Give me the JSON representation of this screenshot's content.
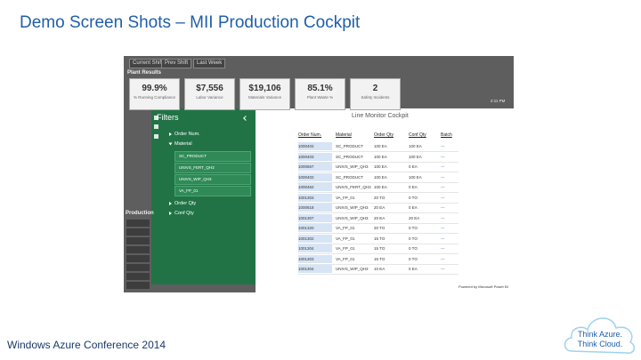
{
  "header": {
    "title": "Demo Screen Shots – MII Production Cockpit"
  },
  "footer": {
    "text": "Windows Azure Conference 2014"
  },
  "logo": {
    "lines": [
      "Think Azure.",
      "Think Cloud."
    ]
  },
  "screenshot": {
    "tabs": [
      "Current Shift",
      "Prev Shift",
      "Last Week"
    ],
    "plant_results_label": "Plant Results",
    "clock": "2:11 PM",
    "kpis": [
      {
        "value": "99.9%",
        "label": "% Running Compliance"
      },
      {
        "value": "$7,556",
        "label": "Labor Variance"
      },
      {
        "value": "$19,106",
        "label": "Materials Variance"
      },
      {
        "value": "85.1%",
        "label": "Plant Waste %"
      },
      {
        "value": "2",
        "label": "Safety Incidents"
      }
    ],
    "production_label": "Production",
    "filters": {
      "title": "Filters",
      "items": [
        {
          "label": "Order Num.",
          "options": []
        },
        {
          "label": "Material",
          "options": [
            "SC_PRODUCT",
            "UNIVS_FERT_QH3",
            "UNIVS_WIP_QH3",
            "VA_FP_01"
          ]
        },
        {
          "label": "Order Qty",
          "options": []
        },
        {
          "label": "Conf Qty",
          "options": []
        }
      ]
    },
    "cockpit": {
      "title": "Line Monitor Cockpit",
      "columns": [
        "Order Num.",
        "Material",
        "Order Qty",
        "Conf Qty",
        "Batch"
      ],
      "rows": [
        [
          "1000402",
          "SC_PRODUCT",
          "100 EA",
          "100 EA",
          "---"
        ],
        [
          "1000403",
          "SC_PRODUCT",
          "100 EA",
          "100 EA",
          "---"
        ],
        [
          "1000667",
          "UNIVS_WIP_QH3",
          "100 EA",
          "0 EA",
          "---"
        ],
        [
          "1000402",
          "SC_PRODUCT",
          "100 EA",
          "100 EA",
          "---"
        ],
        [
          "1000462",
          "UNIVS_FERT_QH3",
          "100 EA",
          "0 EA",
          "---"
        ],
        [
          "1001303",
          "VA_FP_01",
          "20 TO",
          "0 TO",
          "---"
        ],
        [
          "1000618",
          "UNIVS_WIP_QH3",
          "20 EA",
          "0 EA",
          "---"
        ],
        [
          "1001307",
          "UNIVS_WIP_QH3",
          "20 EA",
          "20 EA",
          "---"
        ],
        [
          "1001320",
          "VA_FP_01",
          "20 TO",
          "0 TO",
          "---"
        ],
        [
          "1001302",
          "VA_FP_01",
          "15 TO",
          "0 TO",
          "---"
        ],
        [
          "1001304",
          "VA_FP_01",
          "15 TO",
          "0 TO",
          "---"
        ],
        [
          "1001303",
          "VA_FP_01",
          "15 TO",
          "0 TO",
          "---"
        ],
        [
          "1001304",
          "UNIVS_WIP_QH3",
          "10 EA",
          "0 EA",
          "---"
        ]
      ],
      "footer": "Powered by Microsoft Power BI"
    }
  }
}
